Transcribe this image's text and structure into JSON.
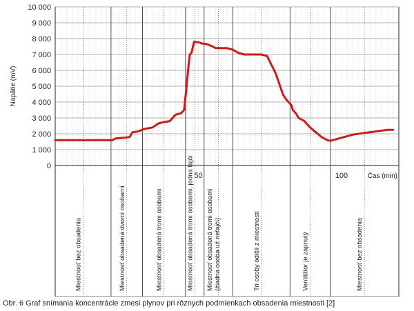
{
  "chart_data": {
    "type": "line",
    "ylabel": "Napätie (mV)",
    "xlabel": "Čas (min)",
    "ylim": [
      0,
      10000
    ],
    "xlim": [
      0,
      120
    ],
    "yticks": [
      0,
      1000,
      2000,
      3000,
      4000,
      5000,
      6000,
      7000,
      8000,
      9000,
      10000
    ],
    "ytick_labels": [
      "0",
      "1 000",
      "2 000",
      "3 000",
      "4 000",
      "5 000",
      "6 000",
      "7 000",
      "8 000",
      "9 000",
      "10 000"
    ],
    "xticks": [
      50,
      100
    ],
    "xtick_labels": [
      "50",
      "100"
    ],
    "grid": true,
    "color": "#cc1a1a",
    "series": [
      {
        "x": [
          0,
          19,
          20,
          21,
          24,
          26,
          27,
          29,
          31,
          34,
          36,
          37,
          40,
          42,
          43,
          44,
          45,
          45.7,
          46.5,
          47,
          47.6,
          48.5,
          50.5,
          51,
          53,
          55,
          56,
          58,
          60,
          62,
          64,
          66,
          68,
          70,
          72,
          74,
          77,
          79.5,
          80.5,
          81.5,
          82.5,
          83,
          84,
          85,
          87,
          89,
          91,
          93,
          95,
          96,
          98,
          101,
          104,
          108,
          112,
          116,
          118
        ],
        "y": [
          1600,
          1600,
          1600,
          1700,
          1750,
          1800,
          2100,
          2150,
          2300,
          2400,
          2650,
          2700,
          2800,
          3200,
          3250,
          3300,
          3500,
          4700,
          6200,
          7000,
          7100,
          7800,
          7750,
          7700,
          7650,
          7500,
          7400,
          7400,
          7400,
          7300,
          7100,
          7000,
          7000,
          7000,
          7000,
          6900,
          5800,
          4500,
          4200,
          4000,
          3800,
          3500,
          3300,
          3000,
          2800,
          2400,
          2100,
          1800,
          1600,
          1550,
          1650,
          1800,
          1950,
          2050,
          2150,
          2250,
          2250
        ]
      }
    ],
    "phases": [
      {
        "x_start": 0,
        "x_end": 19.5,
        "label": "Miestnosť bez obsadenia"
      },
      {
        "x_start": 19.5,
        "x_end": 30.5,
        "label": "Miestnosť obsadená dvomi osobami"
      },
      {
        "x_start": 30.5,
        "x_end": 45.5,
        "label": "Miestnosť obsadená tromi osobami"
      },
      {
        "x_start": 45.5,
        "x_end": 52,
        "label": "Miestnosť obsadená tromi osobami, jedna fajčí"
      },
      {
        "x_start": 52,
        "x_end": 62,
        "label": "Miestnosť obsadená tromi osobami (žiadna osoba už nefajčí)"
      },
      {
        "x_start": 62,
        "x_end": 82,
        "label": "Tri osoby odišli z miestnosti"
      },
      {
        "x_start": 82,
        "x_end": 96,
        "label": "Ventilátor je zapnutý"
      },
      {
        "x_start": 96,
        "x_end": 120,
        "label": "Miestnosť bez obsadenia"
      }
    ]
  },
  "caption": "Obr. 6 Graf snímania koncentrácie zmesi plynov pri rôznych podmienkach obsadenia miestnosti [2]"
}
